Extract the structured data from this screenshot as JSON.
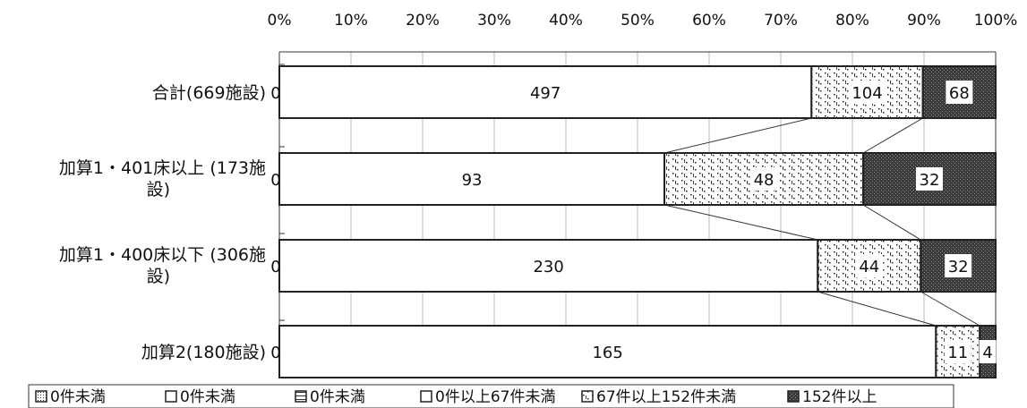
{
  "chart_data": {
    "type": "bar",
    "orientation": "horizontal",
    "stacked": "percent",
    "xlim": [
      0,
      100
    ],
    "xtick_labels": [
      "0%",
      "10%",
      "20%",
      "30%",
      "40%",
      "50%",
      "60%",
      "70%",
      "80%",
      "90%",
      "100%"
    ],
    "categories": [
      "合計(669施設)",
      "加算1・401床以上 (173施設)",
      "加算1・400床以下 (306施設)",
      "加算2(180施設)"
    ],
    "series": [
      {
        "name": "0件未満",
        "values": [
          0,
          0,
          0,
          0
        ],
        "pattern": "dotted-small"
      },
      {
        "name": "0件未満",
        "values": [
          0,
          0,
          0,
          0
        ],
        "pattern": "plain"
      },
      {
        "name": "0件未満",
        "values": [
          0,
          0,
          0,
          0
        ],
        "pattern": "hbar"
      },
      {
        "name": "0件以上67件未満",
        "values": [
          497,
          93,
          230,
          165
        ],
        "pattern": "white"
      },
      {
        "name": "67件以上152件未満",
        "values": [
          104,
          48,
          44,
          11
        ],
        "pattern": "dots"
      },
      {
        "name": "152件以上",
        "values": [
          68,
          32,
          32,
          4
        ],
        "pattern": "dark"
      }
    ],
    "data_labels": [
      [
        "0",
        "497",
        "104",
        "68"
      ],
      [
        "0",
        "93",
        "48",
        "32"
      ],
      [
        "0",
        "230",
        "44",
        "32"
      ],
      [
        "0",
        "165",
        "11",
        "4"
      ]
    ],
    "series_lines": true,
    "grid": true,
    "legend_position": "bottom"
  }
}
